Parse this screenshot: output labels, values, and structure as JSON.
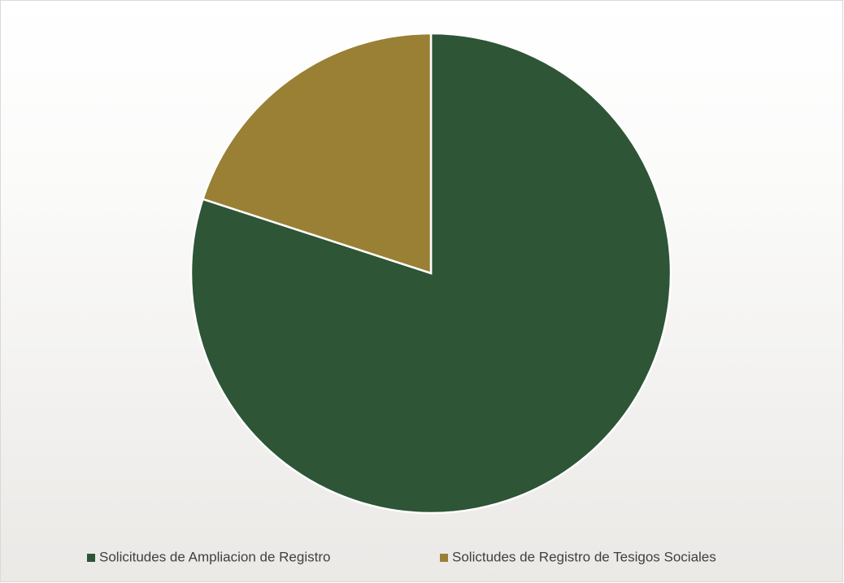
{
  "chart_data": {
    "type": "pie",
    "categories": [
      "Solicitudes de Ampliacion de Registro",
      "Solictudes de Registro de Tesigos Sociales"
    ],
    "values": [
      80,
      20
    ],
    "colors": [
      "#2d5536",
      "#9a8035"
    ],
    "legend": "bottom"
  }
}
